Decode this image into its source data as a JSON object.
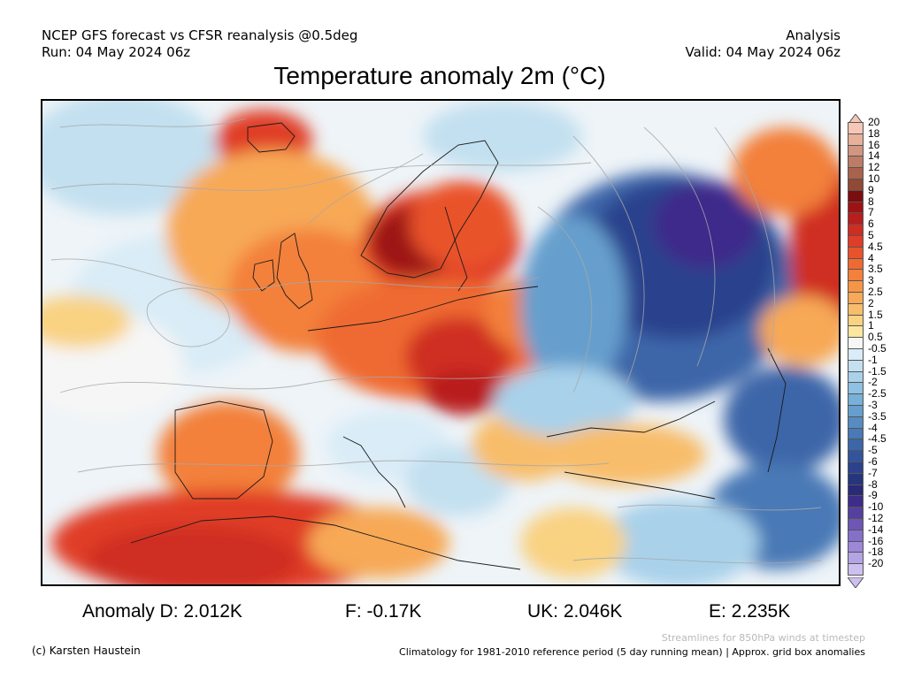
{
  "header": {
    "left_line1": "NCEP GFS forecast vs CFSR reanalysis @0.5deg",
    "left_line2": "Run: 04 May 2024 06z",
    "right_line1": "Analysis",
    "right_line2": "Valid: 04 May 2024 06z"
  },
  "title": "Temperature anomaly 2m (°C)",
  "colorbar": {
    "labels": [
      "20",
      "18",
      "16",
      "14",
      "12",
      "10",
      "9",
      "8",
      "7",
      "6",
      "5",
      "4.5",
      "4",
      "3.5",
      "3",
      "2.5",
      "2",
      "1.5",
      "1",
      "0.5",
      "-0.5",
      "-1",
      "-1.5",
      "-2",
      "-2.5",
      "-3",
      "-3.5",
      "-4",
      "-4.5",
      "-5",
      "-6",
      "-7",
      "-8",
      "-9",
      "-10",
      "-12",
      "-14",
      "-16",
      "-18",
      "-20"
    ],
    "colors": [
      "#f6c7b6",
      "#e7b09b",
      "#d29680",
      "#bd7c65",
      "#a9624b",
      "#8f4a35",
      "#7c0d0f",
      "#9d1314",
      "#b91d1c",
      "#cf2d22",
      "#e03d28",
      "#e9532c",
      "#ef6a33",
      "#f3803b",
      "#f69547",
      "#f7a957",
      "#f8bd6b",
      "#f9d282",
      "#fae69f",
      "#f6f6f6",
      "#d9ecf7",
      "#c3e0f0",
      "#a9d1ea",
      "#8fc1e2",
      "#78b0d8",
      "#669fcd",
      "#578cc2",
      "#4979b6",
      "#3d66a9",
      "#33549c",
      "#2b438d",
      "#26367d",
      "#2a2a79",
      "#3e2c8b",
      "#56409e",
      "#6e56b4",
      "#866fc8",
      "#9d88d8",
      "#b5a4e4",
      "#cdbff0"
    ]
  },
  "stats": {
    "d": "Anomaly D: 2.012K",
    "f": "F: -0.17K",
    "uk": "UK: 2.046K",
    "e": "E: 2.235K"
  },
  "footer": {
    "streamlines": "Streamlines for 850hPa winds at timestep",
    "copyright": "(c) Karsten Haustein",
    "climatology": "Climatology for 1981-2010 reference period (5 day running mean) | Approx. grid box anomalies"
  }
}
